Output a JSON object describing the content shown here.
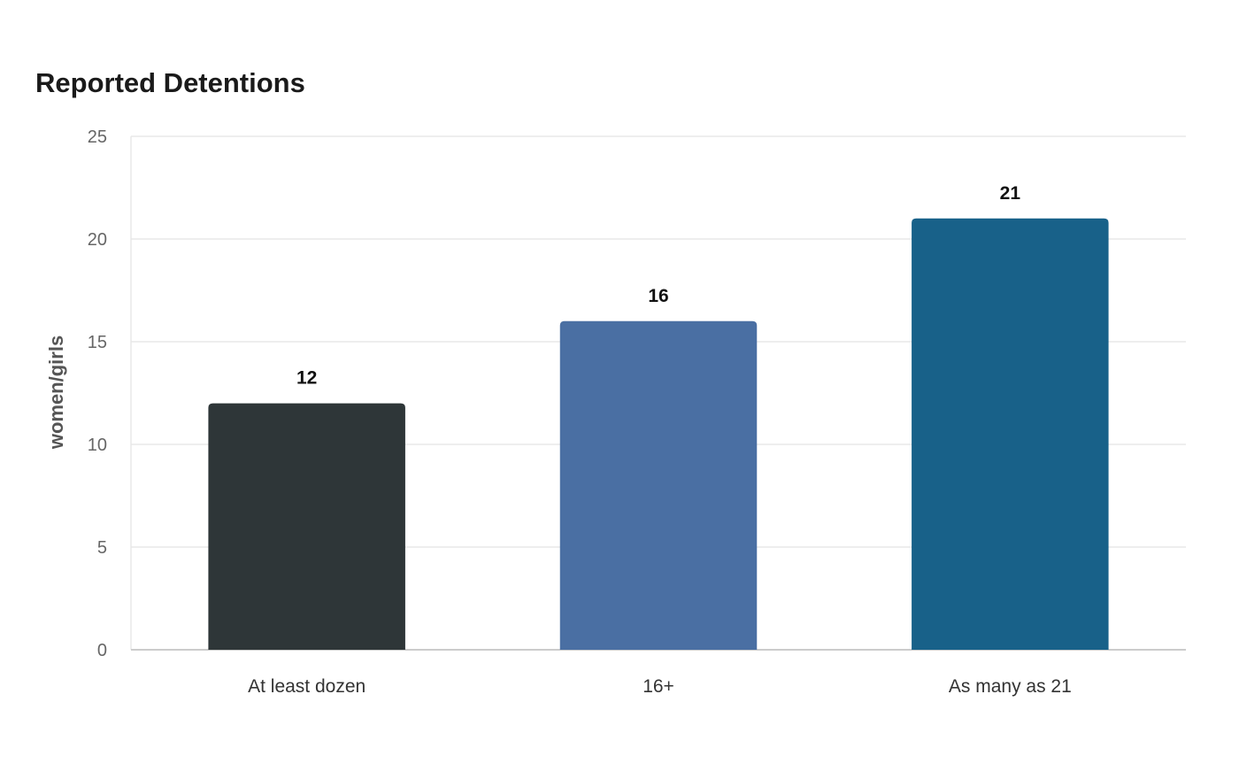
{
  "chart_data": {
    "type": "bar",
    "title": "Reported Detentions",
    "xlabel": "",
    "ylabel": "women/girls",
    "categories": [
      "At least dozen",
      "16+",
      "As many as 21"
    ],
    "values": [
      12,
      16,
      21
    ],
    "value_labels": [
      "12",
      "16",
      "21"
    ],
    "colors": [
      "#2e3638",
      "#4a6fa3",
      "#186189"
    ],
    "ylim": [
      0,
      25
    ],
    "yticks": [
      0,
      5,
      10,
      15,
      20,
      25
    ],
    "grid": true,
    "legend": "none"
  },
  "colors": {
    "grid": "#e8e8e8",
    "axis": "#cccccc"
  }
}
